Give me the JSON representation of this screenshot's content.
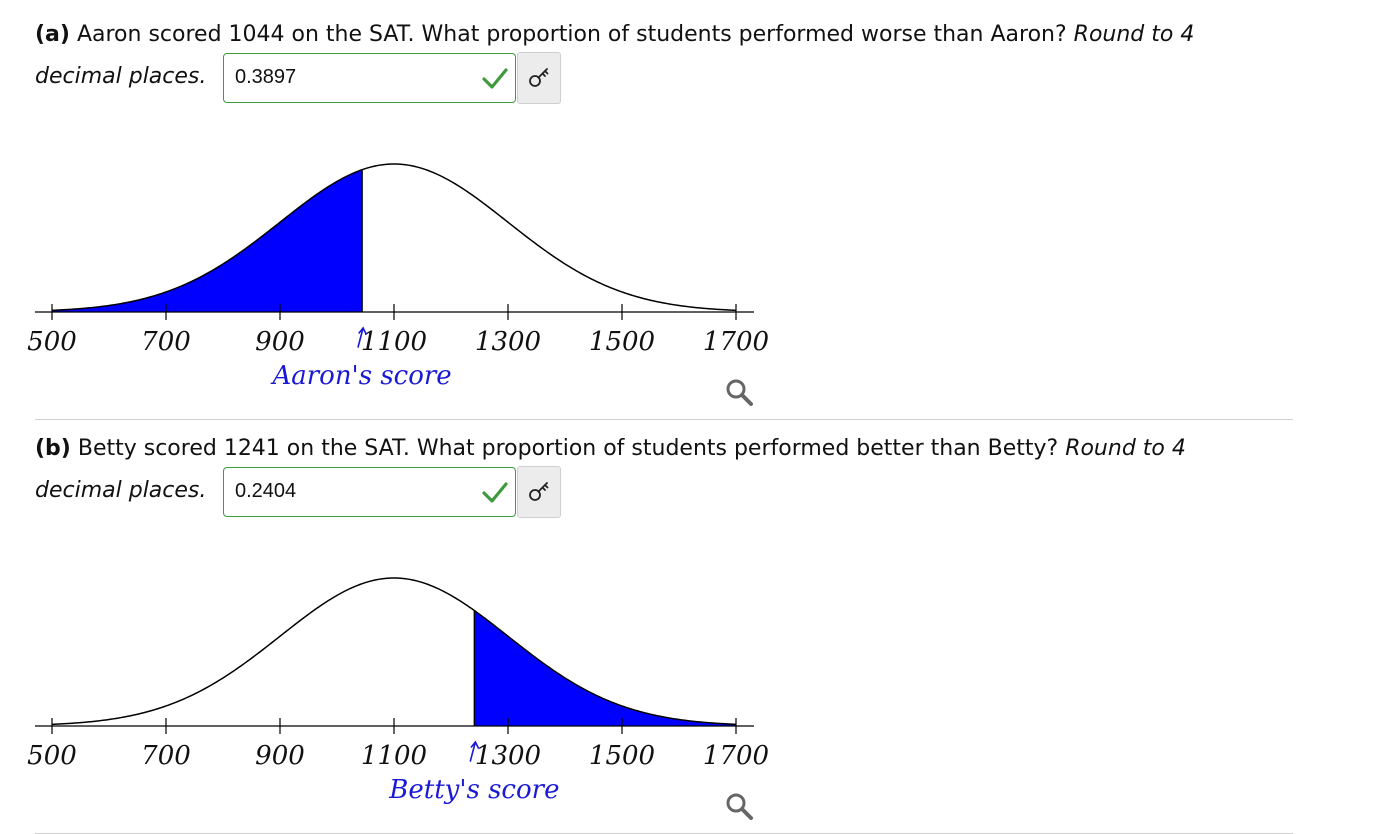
{
  "question_a": {
    "label": "(a)",
    "text": " Aaron scored 1044 on the SAT. What proportion of students performed worse than Aaron? ",
    "round_note": "Round to 4 decimal places.",
    "answer": "0.3897"
  },
  "question_b": {
    "label": "(b)",
    "text": " Betty scored 1241 on the SAT. What proportion of students performed better than Betty? ",
    "round_note": "Round to 4 decimal places.",
    "answer": "0.2404"
  },
  "chart_data": [
    {
      "type": "area",
      "distribution": "normal",
      "mean": 1100,
      "sd": 200,
      "xlim": [
        500,
        1700
      ],
      "tick_labels": [
        "500",
        "700",
        "900",
        "1100",
        "1300",
        "1500",
        "1700"
      ],
      "shaded_region": "left",
      "cutoff": 1044,
      "marker_label": "Aaron's score",
      "fill_color": "#0000ff"
    },
    {
      "type": "area",
      "distribution": "normal",
      "mean": 1100,
      "sd": 200,
      "xlim": [
        500,
        1700
      ],
      "tick_labels": [
        "500",
        "700",
        "900",
        "1100",
        "1300",
        "1500",
        "1700"
      ],
      "shaded_region": "right",
      "cutoff": 1241,
      "marker_label": "Betty's score",
      "fill_color": "#0000ff"
    }
  ],
  "colors": {
    "correct": "#3f9a3f",
    "marker": "#1a1ad6",
    "shade": "#0000ff"
  },
  "icons": [
    "check-icon",
    "key-icon",
    "zoom-icon"
  ]
}
